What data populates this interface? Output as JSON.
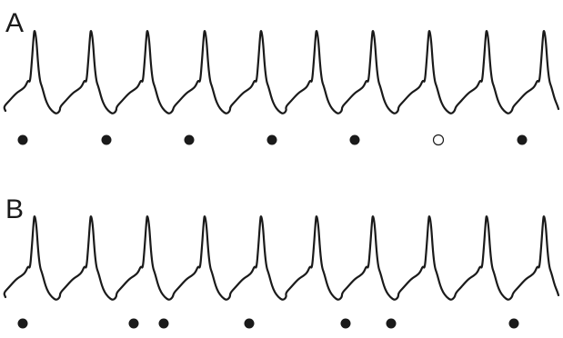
{
  "panels": [
    {
      "label": "A",
      "markers": [
        {
          "filled": true
        },
        {
          "filled": true
        },
        {
          "filled": true
        },
        {
          "filled": true
        },
        {
          "filled": true
        },
        {
          "filled": false
        },
        {
          "filled": true
        }
      ]
    },
    {
      "label": "B",
      "markers": [
        {
          "filled": true
        },
        {
          "filled": true
        },
        {
          "filled": true
        },
        {
          "filled": true
        },
        {
          "filled": true
        },
        {
          "filled": true
        },
        {
          "filled": true
        }
      ]
    }
  ],
  "colors": {
    "trace": "#1a1a1a",
    "marker_fill": "#1a1a1a",
    "marker_open_fill": "#ffffff",
    "background": "#ffffff"
  }
}
